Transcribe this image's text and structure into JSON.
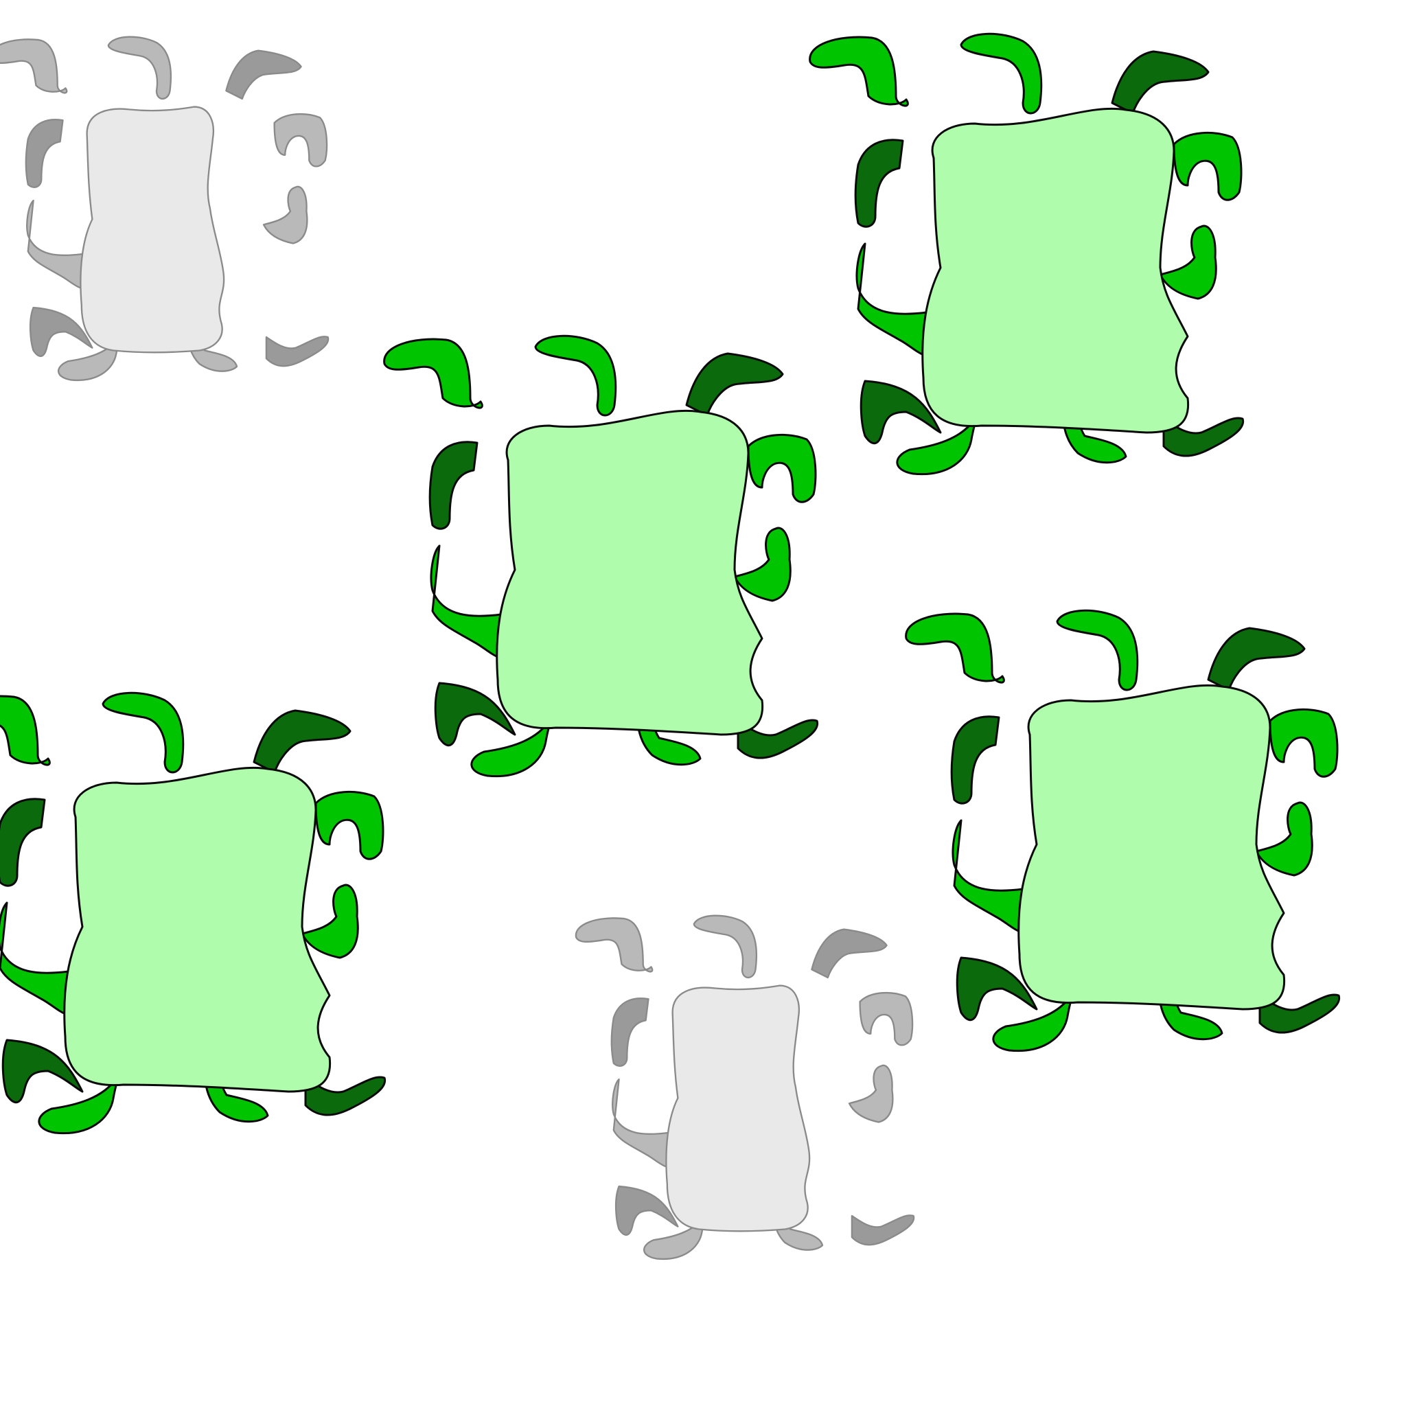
{
  "palette": {
    "background": "#ffffff",
    "active_body_fill": "#b0fcad",
    "active_outline": "#0a0a0a",
    "active_tentacle_light": "#00c400",
    "active_tentacle_dark": "#0b6a0b",
    "inactive_body_fill": "#e9e9e9",
    "inactive_outline": "#8a8a8a",
    "inactive_tentacle_light": "#b9b9b9",
    "inactive_tentacle_dark": "#9a9a9a"
  },
  "creatures": [
    {
      "state": "inactive"
    },
    {
      "state": "active"
    },
    {
      "state": "active"
    },
    {
      "state": "active"
    },
    {
      "state": "active"
    },
    {
      "state": "inactive"
    }
  ]
}
